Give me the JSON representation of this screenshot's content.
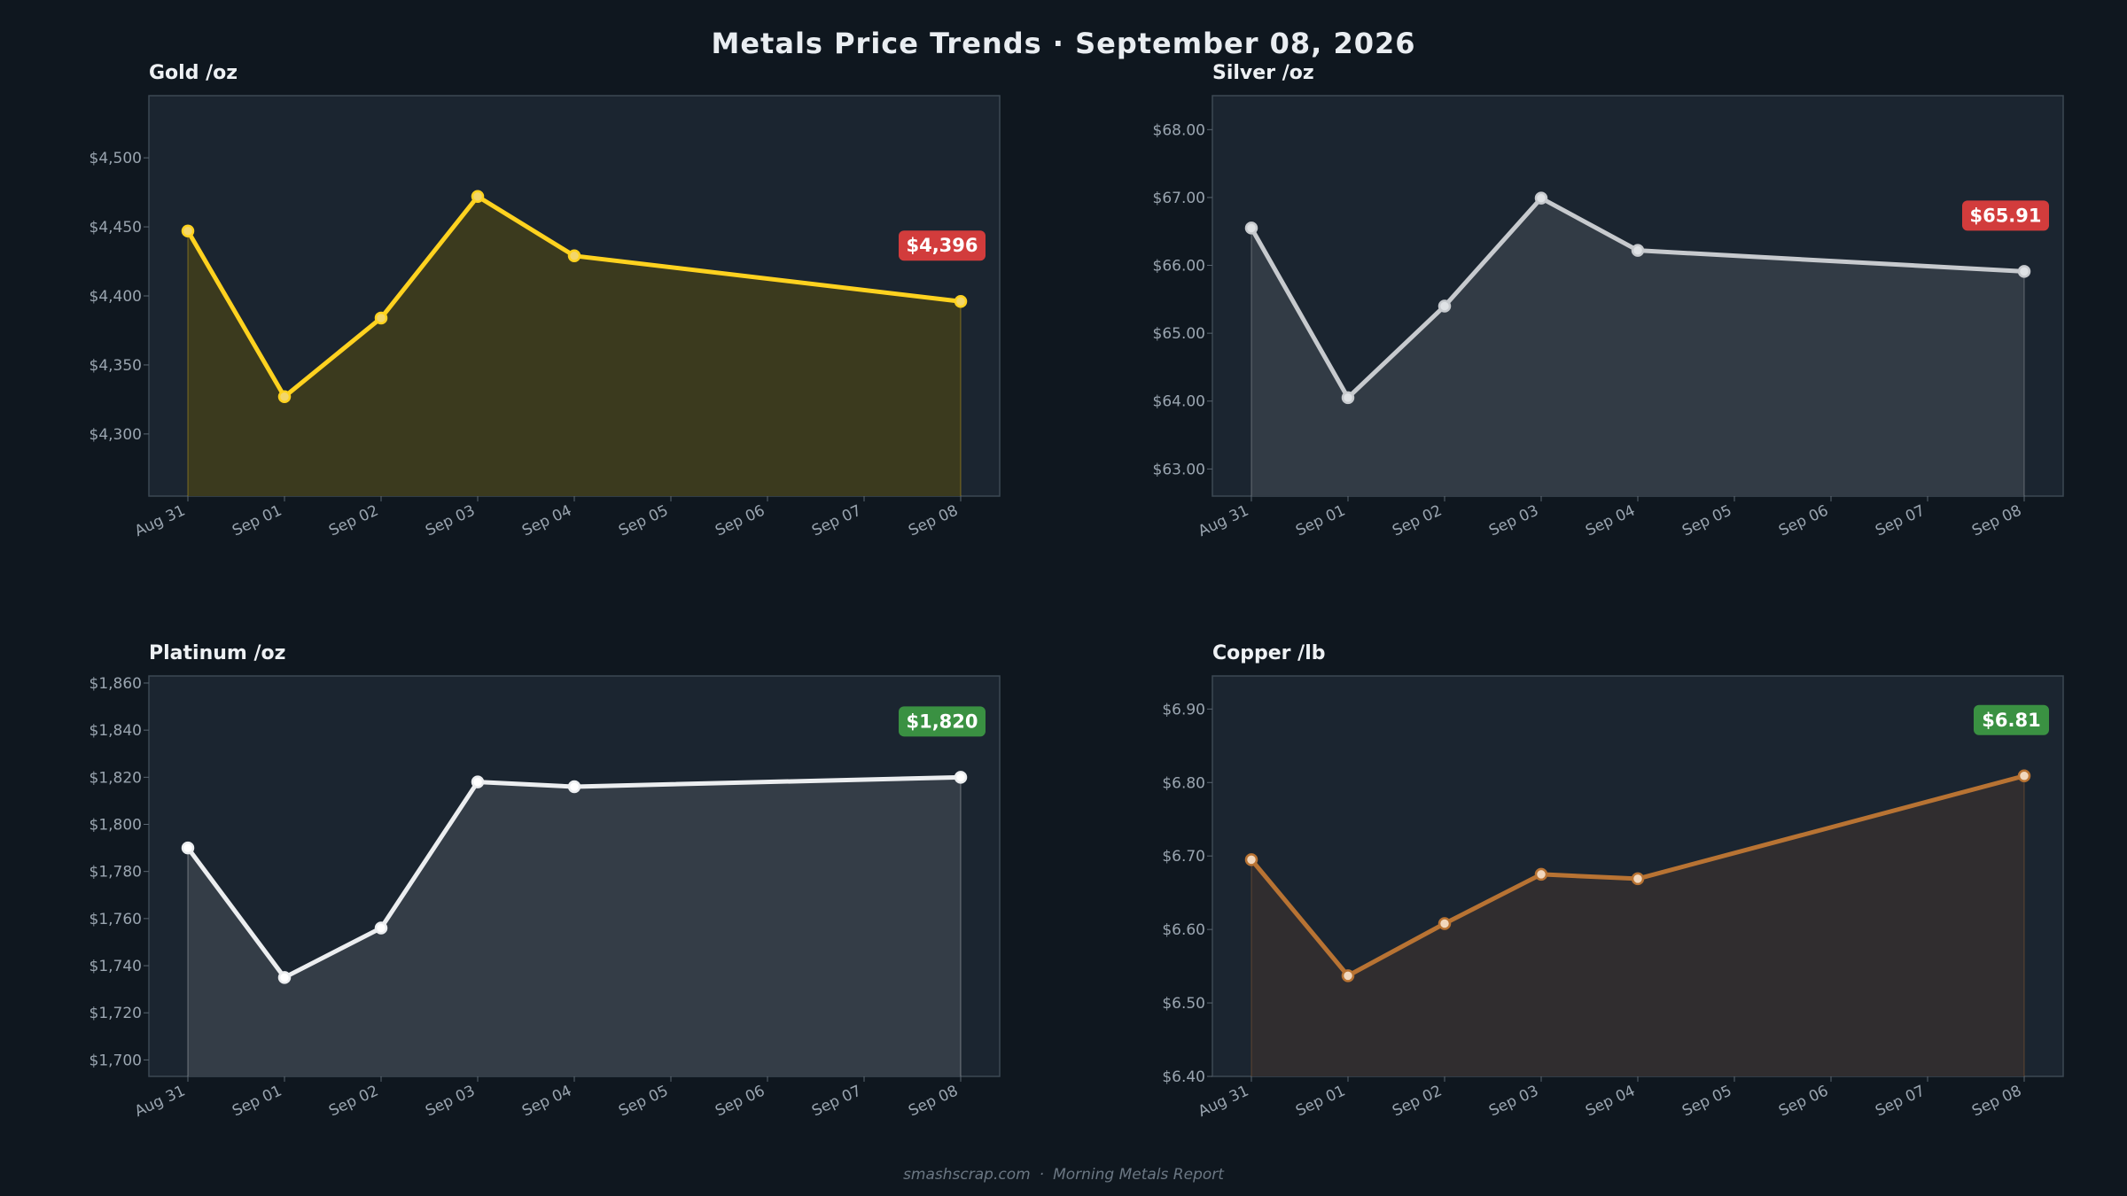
{
  "title": "Metals Price Trends  ·  September 08, 2026",
  "footer": {
    "site": "smashscrap.com",
    "separator": "·",
    "report": "Morning Metals Report"
  },
  "chart_data": [
    {
      "type": "line",
      "title": "Gold  /oz",
      "categories": [
        "Aug 31",
        "Sep 01",
        "Sep 02",
        "Sep 03",
        "Sep 04",
        "Sep 05",
        "Sep 06",
        "Sep 07",
        "Sep 08"
      ],
      "points": [
        [
          0,
          4447
        ],
        [
          1,
          4327
        ],
        [
          2,
          4384
        ],
        [
          3,
          4472
        ],
        [
          4,
          4429
        ],
        [
          8,
          4396
        ]
      ],
      "ylim": [
        4255,
        4545
      ],
      "yticks": [
        4300,
        4350,
        4400,
        4450,
        4500
      ],
      "ytick_labels": [
        "$4,300",
        "$4,350",
        "$4,400",
        "$4,450",
        "$4,500"
      ],
      "color": "#ffd21f",
      "fill_color": "#3b3a1e",
      "marker_fill": "#f3d66a",
      "badge": {
        "text": "$4,396",
        "color": "#d23c3c"
      }
    },
    {
      "type": "line",
      "title": "Silver  /oz",
      "categories": [
        "Aug 31",
        "Sep 01",
        "Sep 02",
        "Sep 03",
        "Sep 04",
        "Sep 05",
        "Sep 06",
        "Sep 07",
        "Sep 08"
      ],
      "points": [
        [
          0,
          66.55
        ],
        [
          1,
          64.05
        ],
        [
          2,
          65.4
        ],
        [
          3,
          66.99
        ],
        [
          4,
          66.22
        ],
        [
          8,
          65.91
        ]
      ],
      "ylim": [
        62.6,
        68.5
      ],
      "yticks": [
        63,
        64,
        65,
        66,
        67,
        68
      ],
      "ytick_labels": [
        "$63.00",
        "$64.00",
        "$65.00",
        "$66.00",
        "$67.00",
        "$68.00"
      ],
      "color": "#c7cace",
      "fill_color": "#323b45",
      "marker_fill": "#dfe2e5",
      "badge": {
        "text": "$65.91",
        "color": "#d23c3c"
      }
    },
    {
      "type": "line",
      "title": "Platinum  /oz",
      "categories": [
        "Aug 31",
        "Sep 01",
        "Sep 02",
        "Sep 03",
        "Sep 04",
        "Sep 05",
        "Sep 06",
        "Sep 07",
        "Sep 08"
      ],
      "points": [
        [
          0,
          1790
        ],
        [
          1,
          1735
        ],
        [
          2,
          1756
        ],
        [
          3,
          1818
        ],
        [
          4,
          1816
        ],
        [
          8,
          1820
        ]
      ],
      "ylim": [
        1693,
        1863
      ],
      "yticks": [
        1700,
        1720,
        1740,
        1760,
        1780,
        1800,
        1820,
        1840,
        1860
      ],
      "ytick_labels": [
        "$1,700",
        "$1,720",
        "$1,740",
        "$1,760",
        "$1,780",
        "$1,800",
        "$1,820",
        "$1,840",
        "$1,860"
      ],
      "color": "#eceef0",
      "fill_color": "#343d47",
      "marker_fill": "#ffffff",
      "badge": {
        "text": "$1,820",
        "color": "#3a9142"
      }
    },
    {
      "type": "line",
      "title": "Copper  /lb",
      "categories": [
        "Aug 31",
        "Sep 01",
        "Sep 02",
        "Sep 03",
        "Sep 04",
        "Sep 05",
        "Sep 06",
        "Sep 07",
        "Sep 08"
      ],
      "points": [
        [
          0,
          6.695
        ],
        [
          1,
          6.537
        ],
        [
          2,
          6.608
        ],
        [
          3,
          6.675
        ],
        [
          4,
          6.669
        ],
        [
          8,
          6.809
        ]
      ],
      "ylim": [
        6.4,
        6.945
      ],
      "yticks": [
        6.4,
        6.5,
        6.6,
        6.7,
        6.8,
        6.9
      ],
      "ytick_labels": [
        "$6.40",
        "$6.50",
        "$6.60",
        "$6.70",
        "$6.80",
        "$6.90"
      ],
      "color": "#b87333",
      "fill_color": "#302d2f",
      "marker_fill": "#f1d7bd",
      "badge": {
        "text": "$6.81",
        "color": "#3a9142"
      }
    }
  ]
}
